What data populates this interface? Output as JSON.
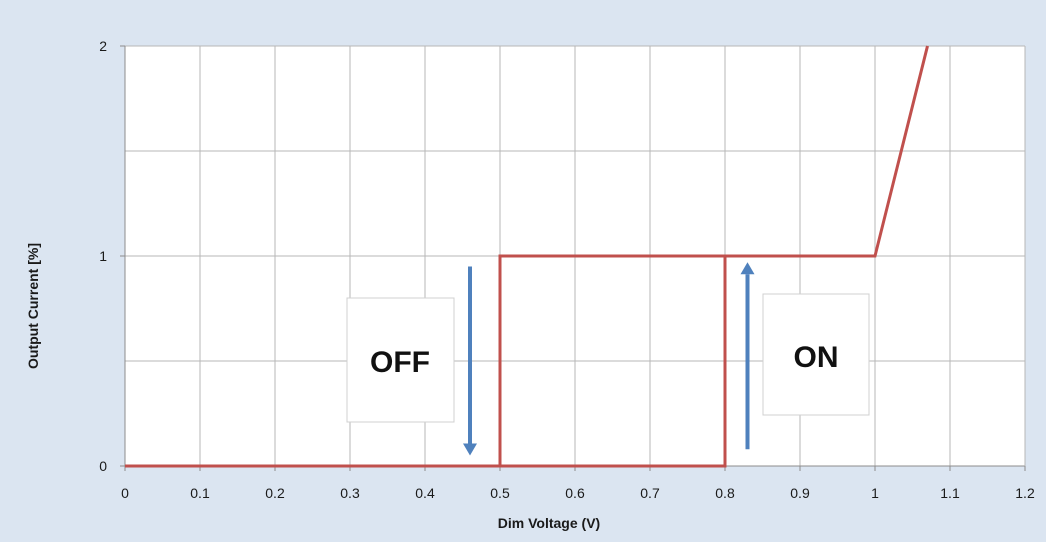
{
  "chart_data": {
    "type": "line",
    "xlabel": "Dim Voltage (V)",
    "ylabel": "Output Current [%]",
    "xlim": [
      0,
      1.2
    ],
    "ylim": [
      0,
      2
    ],
    "x_ticks": [
      "0",
      "0.1",
      "0.2",
      "0.3",
      "0.4",
      "0.5",
      "0.6",
      "0.7",
      "0.8",
      "0.9",
      "1",
      "1.1",
      "1.2"
    ],
    "y_ticks": [
      "0",
      "1",
      "2"
    ],
    "grid": true,
    "series": [
      {
        "color": "#c0504d",
        "points": [
          {
            "x": 0,
            "y": 0
          },
          {
            "x": 0.5,
            "y": 0
          },
          {
            "x": 0.5,
            "y": 1
          },
          {
            "x": 0.8,
            "y": 1
          },
          {
            "x": 0.8,
            "y": 0
          },
          {
            "x": 0.5,
            "y": 0
          },
          {
            "x": 0.5,
            "y": 1
          },
          {
            "x": 1.0,
            "y": 1
          },
          {
            "x": 1.07,
            "y": 2
          }
        ]
      }
    ],
    "annotations": [
      {
        "text": "OFF",
        "arrow_direction": "down",
        "arrow_x": 0.46,
        "arrow_from_y": 0.95,
        "arrow_to_y": 0.05,
        "color": "#4f81bd"
      },
      {
        "text": "ON",
        "arrow_direction": "up",
        "arrow_x": 0.83,
        "arrow_from_y": 0.08,
        "arrow_to_y": 0.97,
        "color": "#4f81bd"
      }
    ]
  }
}
